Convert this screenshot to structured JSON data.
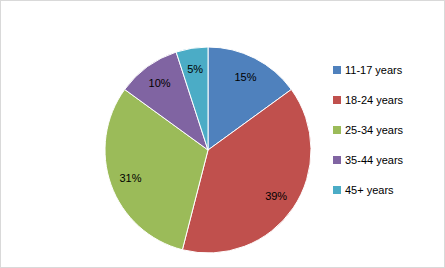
{
  "chart_data": {
    "type": "pie",
    "categories": [
      "11-17 years",
      "18-24 years",
      "25-34 years",
      "35-44 years",
      "45+ years"
    ],
    "values": [
      15,
      39,
      31,
      10,
      5
    ],
    "value_labels": [
      "15%",
      "39%",
      "31%",
      "10%",
      "5%"
    ],
    "colors": [
      "#4f81bd",
      "#c0504d",
      "#9bbb59",
      "#8064a2",
      "#4bacc6"
    ],
    "data_labels": true,
    "legend": "right"
  }
}
